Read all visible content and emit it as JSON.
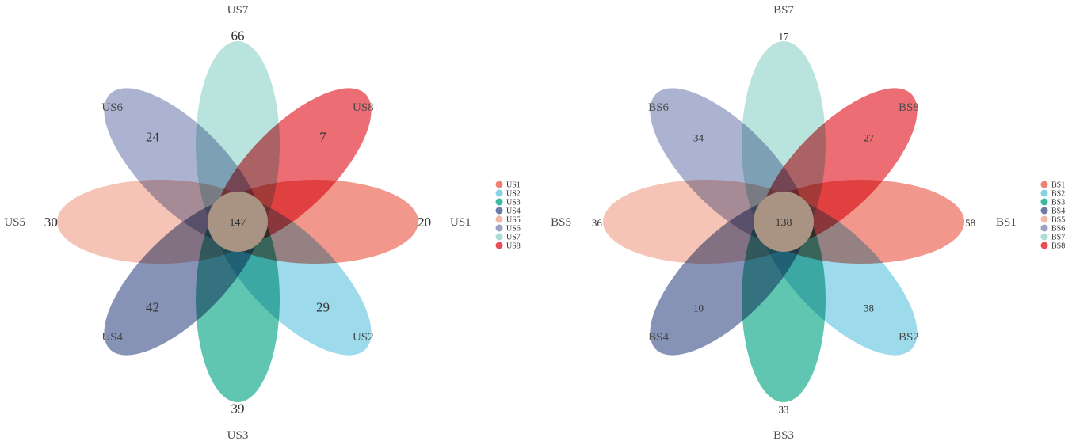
{
  "colors": {
    "S1": "#ef8073",
    "S2": "#87d2e6",
    "S3": "#3db8a0",
    "S4": "#6b7ba6",
    "S5": "#f4b7a7",
    "S6": "#9aa2c6",
    "S7": "#a9ded5",
    "S8": "#e84d55",
    "core": "#a99383"
  },
  "diagrams": [
    {
      "id": "us",
      "core_value": "147",
      "petals": [
        {
          "key": "S1",
          "label": "US1",
          "value": "20"
        },
        {
          "key": "S2",
          "label": "US2",
          "value": "29"
        },
        {
          "key": "S3",
          "label": "US3",
          "value": "39"
        },
        {
          "key": "S4",
          "label": "US4",
          "value": "42"
        },
        {
          "key": "S5",
          "label": "US5",
          "value": "30"
        },
        {
          "key": "S6",
          "label": "US6",
          "value": "24"
        },
        {
          "key": "S7",
          "label": "US7",
          "value": "66"
        },
        {
          "key": "S8",
          "label": "US8",
          "value": "7"
        }
      ],
      "legend": [
        "US1",
        "US2",
        "US3",
        "US4",
        "US5",
        "US6",
        "US7",
        "US8"
      ]
    },
    {
      "id": "bs",
      "core_value": "138",
      "petals": [
        {
          "key": "S1",
          "label": "BS1",
          "value": "58"
        },
        {
          "key": "S2",
          "label": "BS2",
          "value": "38"
        },
        {
          "key": "S3",
          "label": "BS3",
          "value": "33"
        },
        {
          "key": "S4",
          "label": "BS4",
          "value": "10"
        },
        {
          "key": "S5",
          "label": "BS5",
          "value": "36"
        },
        {
          "key": "S6",
          "label": "BS6",
          "value": "34"
        },
        {
          "key": "S7",
          "label": "BS7",
          "value": "17"
        },
        {
          "key": "S8",
          "label": "BS8",
          "value": "27"
        }
      ],
      "legend": [
        "BS1",
        "BS2",
        "BS3",
        "BS4",
        "BS5",
        "BS6",
        "BS7",
        "BS8"
      ]
    }
  ]
}
